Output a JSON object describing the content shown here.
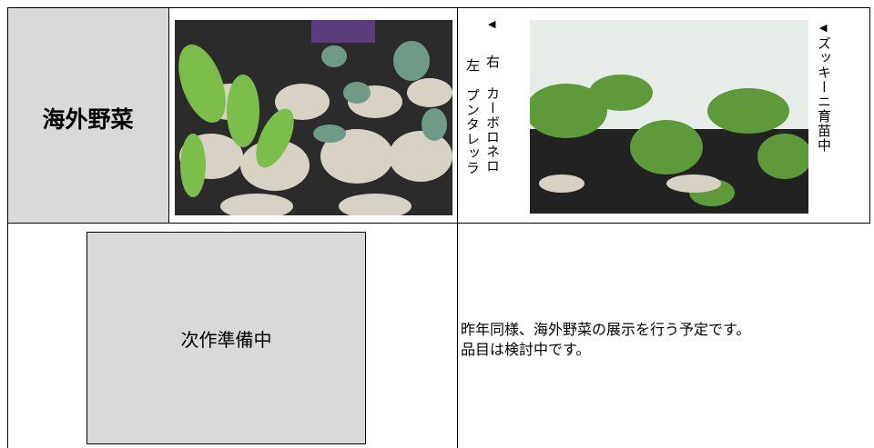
{
  "header": {
    "title": "海外野菜"
  },
  "photo_captions": {
    "left_photo": {
      "marker": "◀",
      "right_label": "右",
      "right_name": "カーボロネロ",
      "left_label": "左",
      "left_name": "プンタレッラ"
    },
    "right_photo": {
      "marker": "◀",
      "text": "ズッキーニ育苗中"
    }
  },
  "placeholder": {
    "text": "次作準備中"
  },
  "note": {
    "lines": [
      "昨年同様、海外野菜の展示を行う予定です。",
      "品目は検討中です。"
    ]
  }
}
